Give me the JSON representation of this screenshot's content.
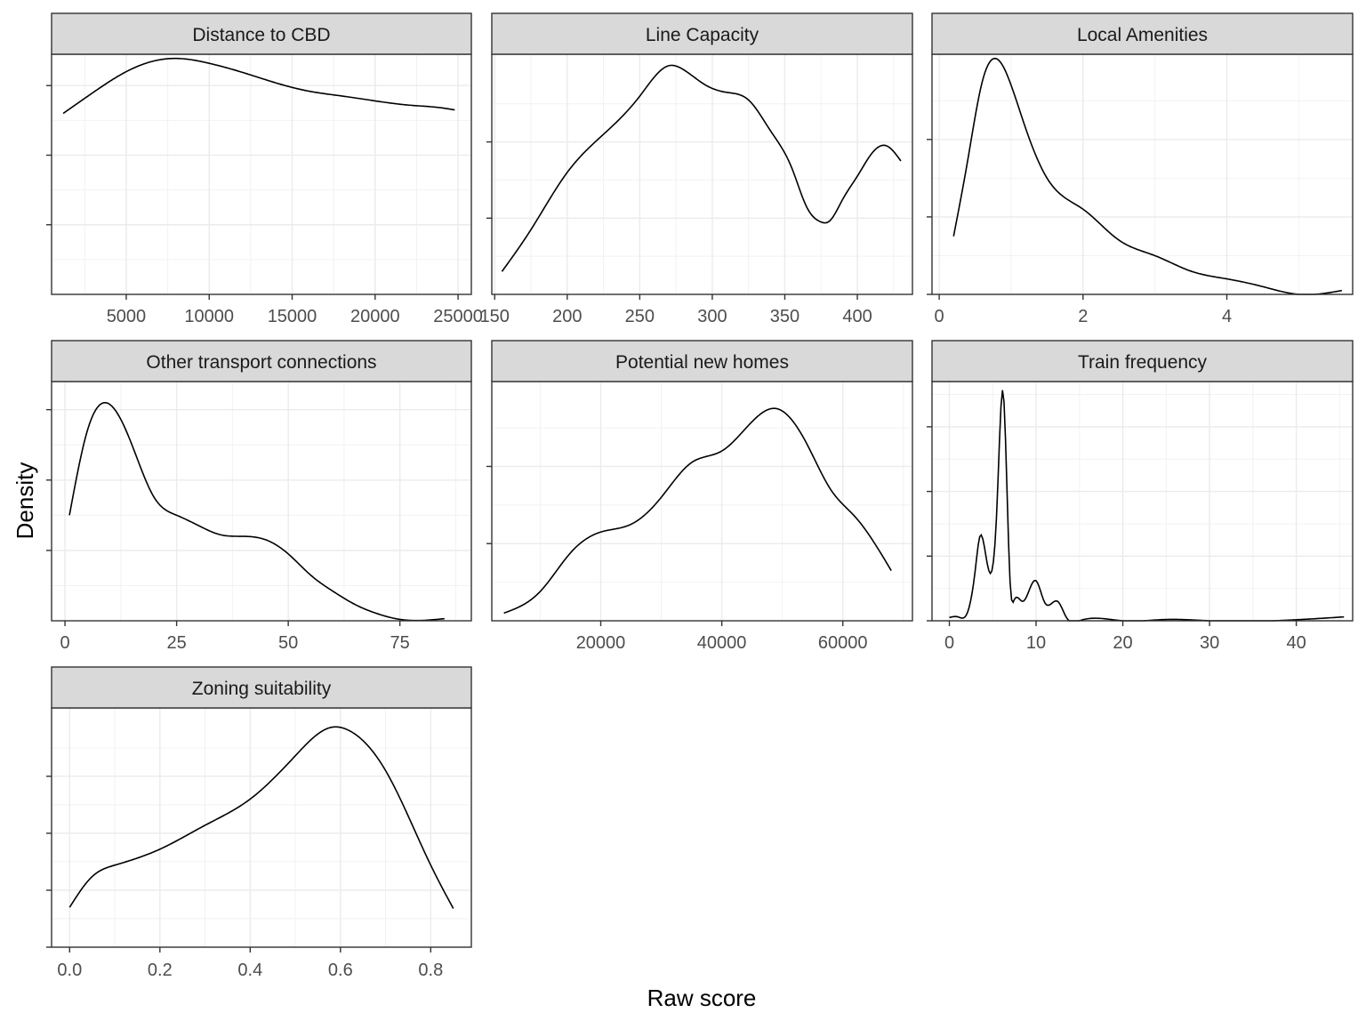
{
  "chart_data": {
    "type": "line",
    "subtype": "density-facets",
    "xlabel": "Raw score",
    "ylabel": "Density",
    "y_tick_labels_shown": false,
    "grid": true,
    "theme": "bw",
    "facets": [
      {
        "title": "Distance to CBD",
        "xlim": [
          500,
          25800
        ],
        "xticks": [
          5000,
          10000,
          15000,
          20000,
          25000
        ],
        "ylim": [
          0,
          6.9e-05
        ],
        "yticks": [
          2e-05,
          4e-05,
          6e-05
        ],
        "x": [
          1200,
          3000,
          5000,
          7000,
          8000,
          10000,
          12000,
          14000,
          16000,
          18000,
          20000,
          22000,
          24000,
          24800
        ],
        "y": [
          5.2e-05,
          5.8e-05,
          6.4e-05,
          6.74e-05,
          6.78e-05,
          6.64e-05,
          6.38e-05,
          6.08e-05,
          5.84e-05,
          5.7e-05,
          5.56e-05,
          5.44e-05,
          5.36e-05,
          5.3e-05
        ]
      },
      {
        "title": "Line Capacity",
        "xlim": [
          148,
          438
        ],
        "xticks": [
          150,
          200,
          250,
          300,
          350,
          400
        ],
        "ylim": [
          0,
          0.0063
        ],
        "yticks": [
          0.002,
          0.004
        ],
        "x": [
          155,
          175,
          200,
          225,
          250,
          270,
          280,
          295,
          310,
          325,
          340,
          355,
          365,
          375,
          380,
          390,
          400,
          410,
          420,
          430
        ],
        "y": [
          0.0006,
          0.0017,
          0.0032,
          0.0042,
          0.0052,
          0.006,
          0.0059,
          0.0055,
          0.0053,
          0.0051,
          0.0043,
          0.0033,
          0.0023,
          0.0019,
          0.0019,
          0.0025,
          0.0031,
          0.0037,
          0.0039,
          0.0035
        ]
      },
      {
        "title": "Local Amenities",
        "xlim": [
          -0.1,
          5.75
        ],
        "xticks": [
          0,
          2,
          4
        ],
        "ylim": [
          0,
          0.62
        ],
        "yticks": [
          0,
          0.2,
          0.4
        ],
        "x": [
          0.2,
          0.4,
          0.6,
          0.85,
          1.0,
          1.2,
          1.5,
          2.0,
          2.5,
          3.0,
          3.5,
          4.0,
          4.5,
          5.0,
          5.6
        ],
        "y": [
          0.15,
          0.35,
          0.55,
          0.6,
          0.54,
          0.43,
          0.3,
          0.22,
          0.14,
          0.1,
          0.06,
          0.04,
          0.02,
          0.0,
          0.01
        ]
      },
      {
        "title": "Other transport connections",
        "xlim": [
          -3,
          91
        ],
        "xticks": [
          0,
          25,
          50,
          75
        ],
        "ylim": [
          0,
          0.034
        ],
        "yticks": [
          0.01,
          0.02,
          0.03
        ],
        "x": [
          1,
          5,
          9,
          15,
          20,
          25,
          30,
          35,
          40,
          45,
          50,
          55,
          60,
          65,
          70,
          75,
          85
        ],
        "y": [
          0.015,
          0.027,
          0.031,
          0.025,
          0.0175,
          0.015,
          0.0135,
          0.0122,
          0.012,
          0.0115,
          0.0095,
          0.0065,
          0.0042,
          0.0023,
          0.001,
          0.0002,
          0.0003
        ]
      },
      {
        "title": "Potential new homes",
        "xlim": [
          2000,
          71500
        ],
        "xticks": [
          20000,
          40000,
          60000
        ],
        "ylim": [
          0,
          3.1e-05
        ],
        "yticks": [
          1e-05,
          2e-05
        ],
        "x": [
          4000,
          10000,
          15000,
          20000,
          25000,
          30000,
          35000,
          40000,
          45000,
          49000,
          54000,
          58000,
          62000,
          68000
        ],
        "y": [
          1e-06,
          3.8e-06,
          8.8e-06,
          1.15e-05,
          1.25e-05,
          1.6e-05,
          2.05e-05,
          2.2e-05,
          2.58e-05,
          2.75e-05,
          2.3e-05,
          1.7e-05,
          1.35e-05,
          6.5e-06
        ]
      },
      {
        "title": "Train frequency",
        "xlim": [
          -2,
          46.5
        ],
        "xticks": [
          0,
          10,
          20,
          30,
          40
        ],
        "ylim": [
          0,
          0.37
        ],
        "yticks": [
          0.0,
          0.1,
          0.2,
          0.3
        ],
        "x": [
          0,
          1,
          2,
          3,
          3.5,
          4.5,
          5.5,
          6.2,
          7.0,
          7.5,
          8.5,
          10,
          11,
          12.5,
          13.5,
          15,
          18,
          20,
          25,
          30,
          45.5
        ],
        "y": [
          0.005,
          0.006,
          0.01,
          0.08,
          0.13,
          0.08,
          0.18,
          0.355,
          0.06,
          0.033,
          0.03,
          0.062,
          0.028,
          0.03,
          0.005,
          0.0,
          0.003,
          0.0,
          0.002,
          0.0,
          0.006
        ]
      },
      {
        "title": "Zoning suitability",
        "xlim": [
          -0.04,
          0.89
        ],
        "xticks": [
          0.0,
          0.2,
          0.4,
          0.6,
          0.8
        ],
        "ylim": [
          0,
          2.1
        ],
        "yticks": [
          0.0,
          0.5,
          1.0,
          1.5
        ],
        "x": [
          0.0,
          0.05,
          0.1,
          0.2,
          0.3,
          0.4,
          0.5,
          0.58,
          0.62,
          0.7,
          0.8,
          0.85
        ],
        "y": [
          0.35,
          0.62,
          0.72,
          0.86,
          1.07,
          1.3,
          1.68,
          1.93,
          1.9,
          1.55,
          0.72,
          0.34
        ]
      }
    ]
  }
}
